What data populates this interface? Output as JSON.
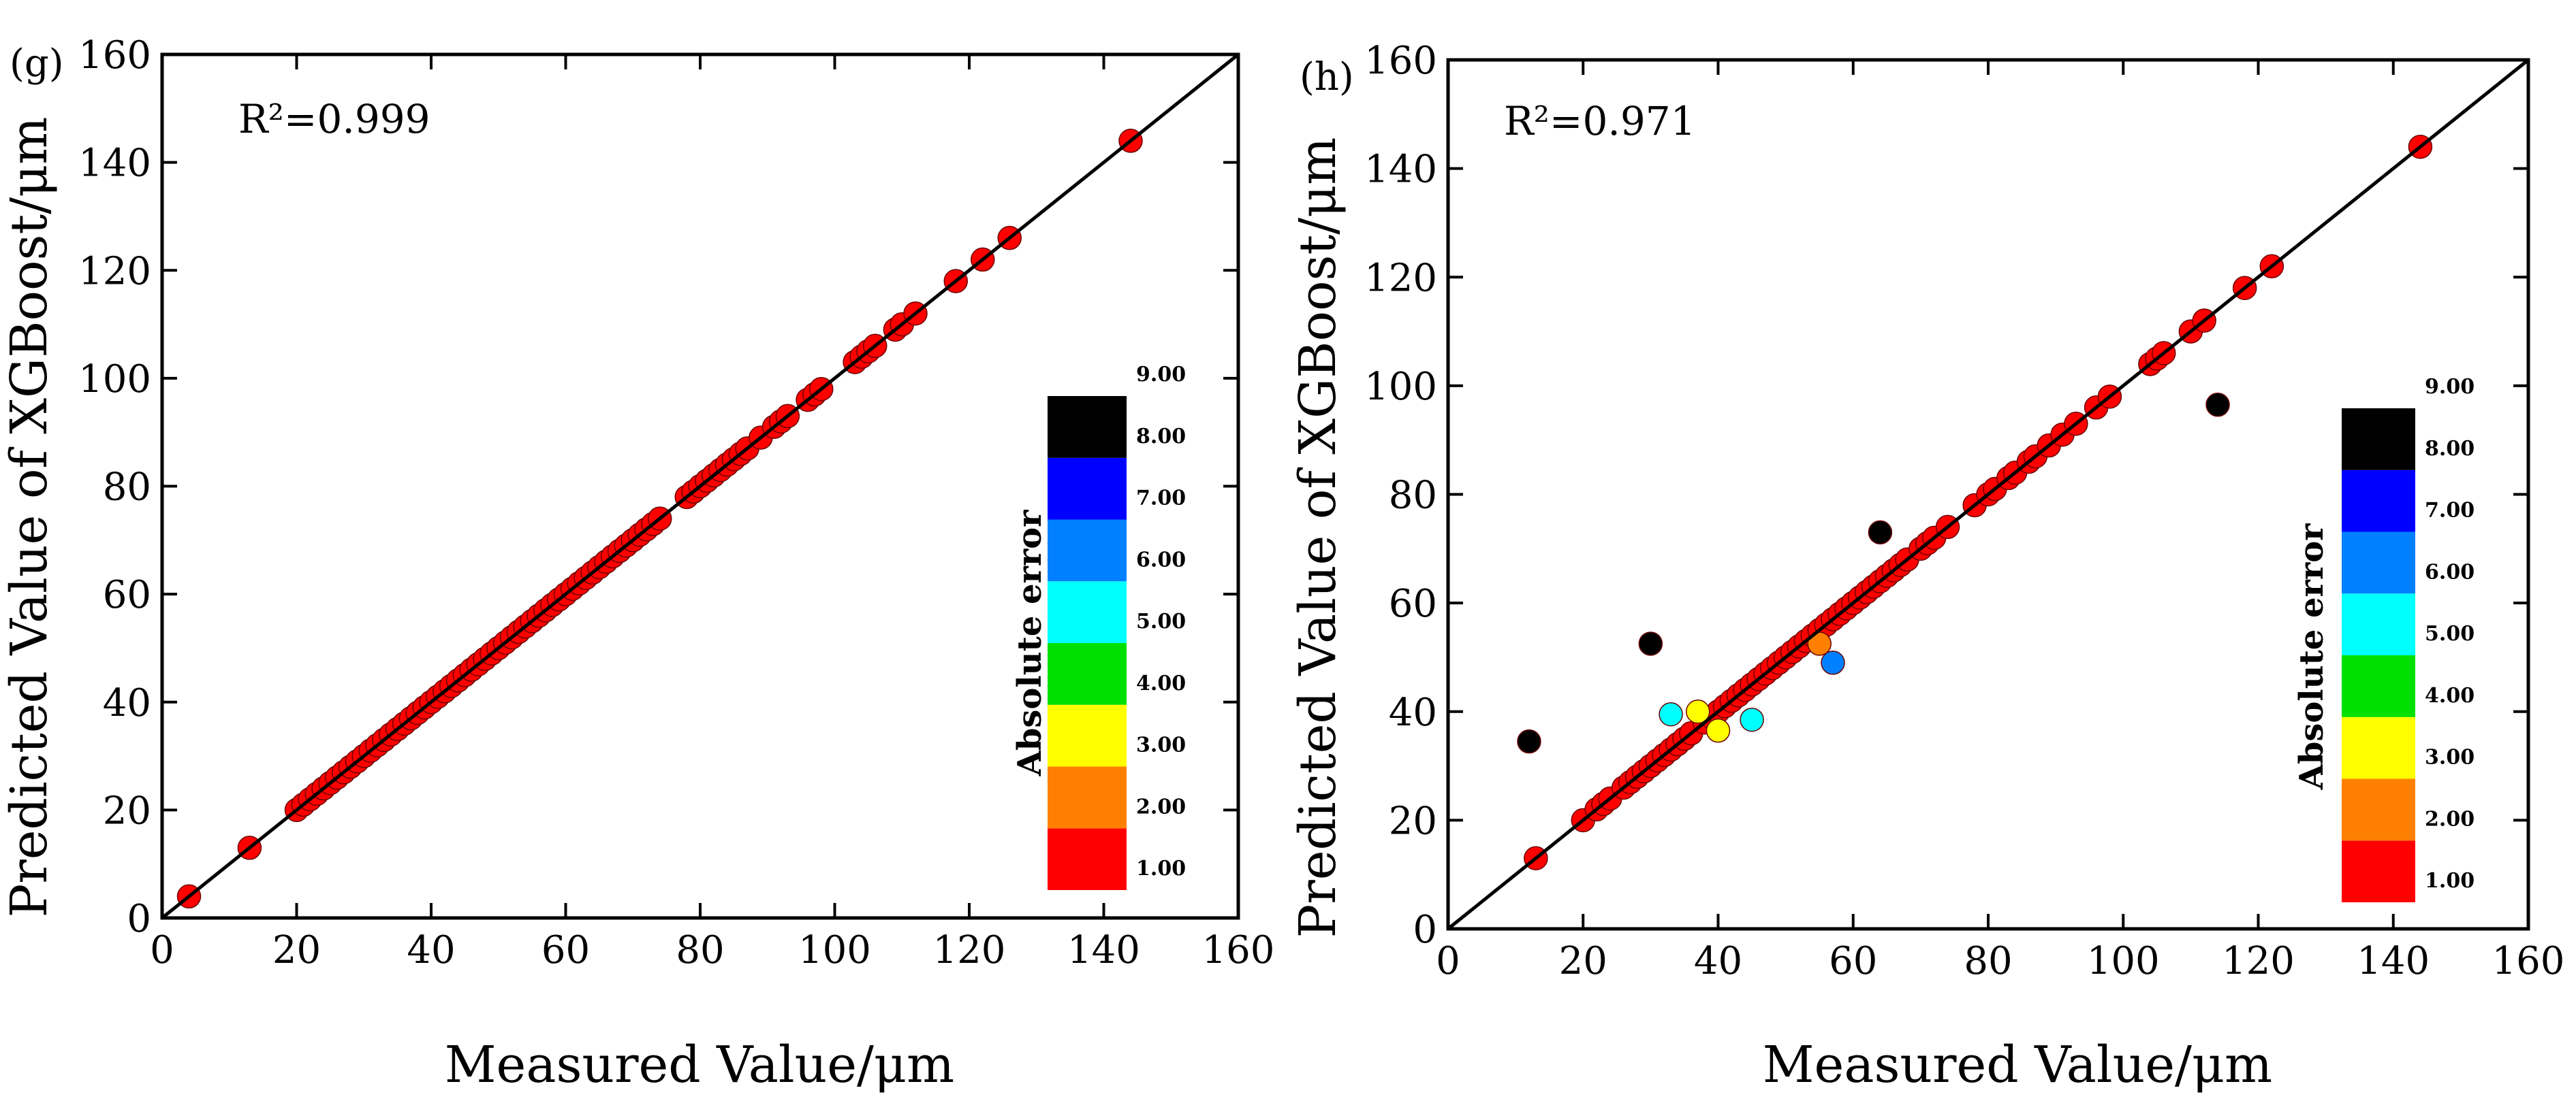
{
  "chart_data": [
    {
      "type": "scatter",
      "panel_label": "(g)",
      "annotation": "R²=0.999",
      "xlabel": "Measured Value/μm",
      "ylabel": "Predicted Value of XGBoost/μm",
      "xlim": [
        0,
        160
      ],
      "ylim": [
        0,
        160
      ],
      "x_ticks": [
        0,
        20,
        40,
        60,
        80,
        100,
        120,
        140,
        160
      ],
      "y_ticks": [
        0,
        20,
        40,
        60,
        80,
        100,
        120,
        140,
        160
      ],
      "reference_line": "y = x",
      "colorbar": {
        "title": "Absolute error",
        "levels": [
          "1.00",
          "2.00",
          "3.00",
          "4.00",
          "5.00",
          "6.00",
          "7.00",
          "8.00",
          "9.00"
        ],
        "colors": [
          "#ff0000",
          "#ff8000",
          "#ffff00",
          "#00e000",
          "#00ffff",
          "#0080ff",
          "#0000ff",
          "#000000"
        ]
      },
      "points": [
        {
          "x": 4,
          "y": 4,
          "color": "#ff0000"
        },
        {
          "x": 13,
          "y": 13,
          "color": "#ff0000"
        },
        {
          "x": 20,
          "y": 20,
          "color": "#ff0000"
        },
        {
          "x": 21,
          "y": 21,
          "color": "#ff0000"
        },
        {
          "x": 22,
          "y": 22,
          "color": "#ff0000"
        },
        {
          "x": 23,
          "y": 23,
          "color": "#ff0000"
        },
        {
          "x": 24,
          "y": 24,
          "color": "#ff0000"
        },
        {
          "x": 25,
          "y": 25,
          "color": "#ff0000"
        },
        {
          "x": 26,
          "y": 26,
          "color": "#ff0000"
        },
        {
          "x": 27,
          "y": 27,
          "color": "#ff0000"
        },
        {
          "x": 28,
          "y": 28,
          "color": "#ff0000"
        },
        {
          "x": 29,
          "y": 29,
          "color": "#ff0000"
        },
        {
          "x": 30,
          "y": 30,
          "color": "#ff0000"
        },
        {
          "x": 31,
          "y": 31,
          "color": "#ff0000"
        },
        {
          "x": 32,
          "y": 32,
          "color": "#ff0000"
        },
        {
          "x": 33,
          "y": 33,
          "color": "#ff0000"
        },
        {
          "x": 34,
          "y": 34,
          "color": "#ff0000"
        },
        {
          "x": 35,
          "y": 35,
          "color": "#ff0000"
        },
        {
          "x": 36,
          "y": 36,
          "color": "#ff0000"
        },
        {
          "x": 37,
          "y": 37,
          "color": "#ff0000"
        },
        {
          "x": 38,
          "y": 38,
          "color": "#ff0000"
        },
        {
          "x": 39,
          "y": 39,
          "color": "#ff0000"
        },
        {
          "x": 40,
          "y": 40,
          "color": "#ff0000"
        },
        {
          "x": 41,
          "y": 41,
          "color": "#ff0000"
        },
        {
          "x": 42,
          "y": 42,
          "color": "#ff0000"
        },
        {
          "x": 43,
          "y": 43,
          "color": "#ff0000"
        },
        {
          "x": 44,
          "y": 44,
          "color": "#ff0000"
        },
        {
          "x": 45,
          "y": 45,
          "color": "#ff0000"
        },
        {
          "x": 46,
          "y": 46,
          "color": "#ff0000"
        },
        {
          "x": 47,
          "y": 47,
          "color": "#ff0000"
        },
        {
          "x": 48,
          "y": 48,
          "color": "#ff0000"
        },
        {
          "x": 49,
          "y": 49,
          "color": "#ff0000"
        },
        {
          "x": 50,
          "y": 50,
          "color": "#ff0000"
        },
        {
          "x": 51,
          "y": 51,
          "color": "#ff0000"
        },
        {
          "x": 52,
          "y": 52,
          "color": "#ff0000"
        },
        {
          "x": 53,
          "y": 53,
          "color": "#ff0000"
        },
        {
          "x": 54,
          "y": 54,
          "color": "#ff0000"
        },
        {
          "x": 55,
          "y": 55,
          "color": "#ff0000"
        },
        {
          "x": 56,
          "y": 56,
          "color": "#ff0000"
        },
        {
          "x": 57,
          "y": 57,
          "color": "#ff0000"
        },
        {
          "x": 58,
          "y": 58,
          "color": "#ff0000"
        },
        {
          "x": 59,
          "y": 59,
          "color": "#ff0000"
        },
        {
          "x": 60,
          "y": 60,
          "color": "#ff0000"
        },
        {
          "x": 61,
          "y": 61,
          "color": "#ff0000"
        },
        {
          "x": 62,
          "y": 62,
          "color": "#ff0000"
        },
        {
          "x": 63,
          "y": 63,
          "color": "#ff0000"
        },
        {
          "x": 64,
          "y": 64,
          "color": "#ff0000"
        },
        {
          "x": 65,
          "y": 65,
          "color": "#ff0000"
        },
        {
          "x": 66,
          "y": 66,
          "color": "#ff0000"
        },
        {
          "x": 67,
          "y": 67,
          "color": "#ff0000"
        },
        {
          "x": 68,
          "y": 68,
          "color": "#ff0000"
        },
        {
          "x": 69,
          "y": 69,
          "color": "#ff0000"
        },
        {
          "x": 70,
          "y": 70,
          "color": "#ff0000"
        },
        {
          "x": 71,
          "y": 71,
          "color": "#ff0000"
        },
        {
          "x": 72,
          "y": 72,
          "color": "#ff0000"
        },
        {
          "x": 73,
          "y": 73,
          "color": "#ff0000"
        },
        {
          "x": 74,
          "y": 74,
          "color": "#ff0000"
        },
        {
          "x": 78,
          "y": 78,
          "color": "#ff0000"
        },
        {
          "x": 79,
          "y": 79,
          "color": "#ff0000"
        },
        {
          "x": 80,
          "y": 80,
          "color": "#ff0000"
        },
        {
          "x": 81,
          "y": 81,
          "color": "#ff0000"
        },
        {
          "x": 82,
          "y": 82,
          "color": "#ff0000"
        },
        {
          "x": 83,
          "y": 83,
          "color": "#ff0000"
        },
        {
          "x": 84,
          "y": 84,
          "color": "#ff0000"
        },
        {
          "x": 85,
          "y": 85,
          "color": "#ff0000"
        },
        {
          "x": 86,
          "y": 86,
          "color": "#ff0000"
        },
        {
          "x": 87,
          "y": 87,
          "color": "#ff0000"
        },
        {
          "x": 89,
          "y": 89,
          "color": "#ff0000"
        },
        {
          "x": 91,
          "y": 91,
          "color": "#ff0000"
        },
        {
          "x": 92,
          "y": 92,
          "color": "#ff0000"
        },
        {
          "x": 93,
          "y": 93,
          "color": "#ff0000"
        },
        {
          "x": 96,
          "y": 96,
          "color": "#ff0000"
        },
        {
          "x": 97,
          "y": 97,
          "color": "#ff0000"
        },
        {
          "x": 98,
          "y": 98,
          "color": "#ff0000"
        },
        {
          "x": 103,
          "y": 103,
          "color": "#ff0000"
        },
        {
          "x": 104,
          "y": 104,
          "color": "#ff0000"
        },
        {
          "x": 105,
          "y": 105,
          "color": "#ff0000"
        },
        {
          "x": 106,
          "y": 106,
          "color": "#ff0000"
        },
        {
          "x": 109,
          "y": 109,
          "color": "#ff0000"
        },
        {
          "x": 110,
          "y": 110,
          "color": "#ff0000"
        },
        {
          "x": 112,
          "y": 112,
          "color": "#ff0000"
        },
        {
          "x": 118,
          "y": 118,
          "color": "#ff0000"
        },
        {
          "x": 122,
          "y": 122,
          "color": "#ff0000"
        },
        {
          "x": 126,
          "y": 126,
          "color": "#ff0000"
        },
        {
          "x": 144,
          "y": 144,
          "color": "#ff0000"
        }
      ]
    },
    {
      "type": "scatter",
      "panel_label": "(h)",
      "annotation": "R²=0.971",
      "xlabel": "Measured Value/μm",
      "ylabel": "Predicted Value of XGBoost/μm",
      "xlim": [
        0,
        160
      ],
      "ylim": [
        0,
        160
      ],
      "x_ticks": [
        0,
        20,
        40,
        60,
        80,
        100,
        120,
        140,
        160
      ],
      "y_ticks": [
        0,
        20,
        40,
        60,
        80,
        100,
        120,
        140,
        160
      ],
      "reference_line": "y = x",
      "colorbar": {
        "title": "Absolute error",
        "levels": [
          "1.00",
          "2.00",
          "3.00",
          "4.00",
          "5.00",
          "6.00",
          "7.00",
          "8.00",
          "9.00"
        ],
        "colors": [
          "#ff0000",
          "#ff8000",
          "#ffff00",
          "#00e000",
          "#00ffff",
          "#0080ff",
          "#0000ff",
          "#000000"
        ]
      },
      "points": [
        {
          "x": 13,
          "y": 13,
          "color": "#ff0000"
        },
        {
          "x": 20,
          "y": 20,
          "color": "#ff0000"
        },
        {
          "x": 22,
          "y": 22,
          "color": "#ff0000"
        },
        {
          "x": 23,
          "y": 23,
          "color": "#ff0000"
        },
        {
          "x": 24,
          "y": 24,
          "color": "#ff0000"
        },
        {
          "x": 26,
          "y": 26,
          "color": "#ff0000"
        },
        {
          "x": 27,
          "y": 27,
          "color": "#ff0000"
        },
        {
          "x": 28,
          "y": 28,
          "color": "#ff0000"
        },
        {
          "x": 29,
          "y": 29,
          "color": "#ff0000"
        },
        {
          "x": 30,
          "y": 30,
          "color": "#ff0000"
        },
        {
          "x": 31,
          "y": 31,
          "color": "#ff0000"
        },
        {
          "x": 32,
          "y": 32,
          "color": "#ff0000"
        },
        {
          "x": 33,
          "y": 33,
          "color": "#ff0000"
        },
        {
          "x": 34,
          "y": 34,
          "color": "#ff0000"
        },
        {
          "x": 35,
          "y": 35,
          "color": "#ff0000"
        },
        {
          "x": 36,
          "y": 36,
          "color": "#ff0000"
        },
        {
          "x": 38,
          "y": 38,
          "color": "#ff0000"
        },
        {
          "x": 39,
          "y": 39,
          "color": "#ff0000"
        },
        {
          "x": 40,
          "y": 40,
          "color": "#ff0000"
        },
        {
          "x": 41,
          "y": 41,
          "color": "#ff0000"
        },
        {
          "x": 42,
          "y": 42,
          "color": "#ff0000"
        },
        {
          "x": 43,
          "y": 43,
          "color": "#ff0000"
        },
        {
          "x": 44,
          "y": 44,
          "color": "#ff0000"
        },
        {
          "x": 45,
          "y": 45,
          "color": "#ff0000"
        },
        {
          "x": 46,
          "y": 46,
          "color": "#ff0000"
        },
        {
          "x": 47,
          "y": 47,
          "color": "#ff0000"
        },
        {
          "x": 48,
          "y": 48,
          "color": "#ff0000"
        },
        {
          "x": 49,
          "y": 49,
          "color": "#ff0000"
        },
        {
          "x": 50,
          "y": 50,
          "color": "#ff0000"
        },
        {
          "x": 51,
          "y": 51,
          "color": "#ff0000"
        },
        {
          "x": 52,
          "y": 52,
          "color": "#ff0000"
        },
        {
          "x": 53,
          "y": 53,
          "color": "#ff0000"
        },
        {
          "x": 54,
          "y": 54,
          "color": "#ff0000"
        },
        {
          "x": 55,
          "y": 55,
          "color": "#ff0000"
        },
        {
          "x": 56,
          "y": 56,
          "color": "#ff0000"
        },
        {
          "x": 57,
          "y": 57,
          "color": "#ff0000"
        },
        {
          "x": 58,
          "y": 58,
          "color": "#ff0000"
        },
        {
          "x": 59,
          "y": 59,
          "color": "#ff0000"
        },
        {
          "x": 60,
          "y": 60,
          "color": "#ff0000"
        },
        {
          "x": 61,
          "y": 61,
          "color": "#ff0000"
        },
        {
          "x": 62,
          "y": 62,
          "color": "#ff0000"
        },
        {
          "x": 63,
          "y": 63,
          "color": "#ff0000"
        },
        {
          "x": 64,
          "y": 64,
          "color": "#ff0000"
        },
        {
          "x": 65,
          "y": 65,
          "color": "#ff0000"
        },
        {
          "x": 66,
          "y": 66,
          "color": "#ff0000"
        },
        {
          "x": 67,
          "y": 67,
          "color": "#ff0000"
        },
        {
          "x": 68,
          "y": 68,
          "color": "#ff0000"
        },
        {
          "x": 70,
          "y": 70,
          "color": "#ff0000"
        },
        {
          "x": 71,
          "y": 71,
          "color": "#ff0000"
        },
        {
          "x": 72,
          "y": 72,
          "color": "#ff0000"
        },
        {
          "x": 74,
          "y": 74,
          "color": "#ff0000"
        },
        {
          "x": 78,
          "y": 78,
          "color": "#ff0000"
        },
        {
          "x": 80,
          "y": 80,
          "color": "#ff0000"
        },
        {
          "x": 81,
          "y": 81,
          "color": "#ff0000"
        },
        {
          "x": 83,
          "y": 83,
          "color": "#ff0000"
        },
        {
          "x": 84,
          "y": 84,
          "color": "#ff0000"
        },
        {
          "x": 86,
          "y": 86,
          "color": "#ff0000"
        },
        {
          "x": 87,
          "y": 87,
          "color": "#ff0000"
        },
        {
          "x": 89,
          "y": 89,
          "color": "#ff0000"
        },
        {
          "x": 91,
          "y": 91,
          "color": "#ff0000"
        },
        {
          "x": 93,
          "y": 93,
          "color": "#ff0000"
        },
        {
          "x": 96,
          "y": 96,
          "color": "#ff0000"
        },
        {
          "x": 98,
          "y": 98,
          "color": "#ff0000"
        },
        {
          "x": 104,
          "y": 104,
          "color": "#ff0000"
        },
        {
          "x": 105,
          "y": 105,
          "color": "#ff0000"
        },
        {
          "x": 106,
          "y": 106,
          "color": "#ff0000"
        },
        {
          "x": 110,
          "y": 110,
          "color": "#ff0000"
        },
        {
          "x": 112,
          "y": 112,
          "color": "#ff0000"
        },
        {
          "x": 118,
          "y": 118,
          "color": "#ff0000"
        },
        {
          "x": 122,
          "y": 122,
          "color": "#ff0000"
        },
        {
          "x": 144,
          "y": 144,
          "color": "#ff0000"
        },
        {
          "x": 12,
          "y": 34.5,
          "color": "#000000"
        },
        {
          "x": 30,
          "y": 52.5,
          "color": "#000000"
        },
        {
          "x": 64,
          "y": 73,
          "color": "#000000"
        },
        {
          "x": 114,
          "y": 96.5,
          "color": "#000000"
        },
        {
          "x": 33,
          "y": 39.5,
          "color": "#00ffff"
        },
        {
          "x": 45,
          "y": 38.5,
          "color": "#00ffff"
        },
        {
          "x": 37,
          "y": 40,
          "color": "#ffff00"
        },
        {
          "x": 40,
          "y": 36.5,
          "color": "#ffff00"
        },
        {
          "x": 55,
          "y": 52.5,
          "color": "#ff8000"
        },
        {
          "x": 57,
          "y": 49,
          "color": "#0080ff"
        }
      ]
    }
  ]
}
